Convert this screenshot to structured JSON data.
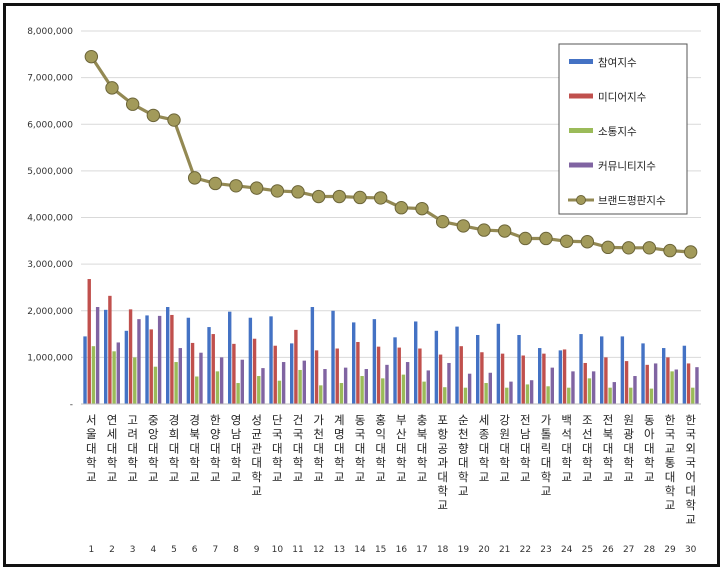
{
  "chart_data": {
    "type": "bar",
    "title": "",
    "xlabel": "",
    "ylabel": "",
    "ylim": [
      0,
      8000000
    ],
    "yticks": [
      0,
      1000000,
      2000000,
      3000000,
      4000000,
      5000000,
      6000000,
      7000000,
      8000000
    ],
    "ytick_labels": [
      "-",
      "1,000,000",
      "2,000,000",
      "3,000,000",
      "4,000,000",
      "5,000,000",
      "6,000,000",
      "7,000,000",
      "8,000,000"
    ],
    "grid": true,
    "legend_position": "top-right",
    "categories": [
      "서울대학교",
      "연세대학교",
      "고려대학교",
      "중앙대학교",
      "경희대학교",
      "경북대학교",
      "한양대학교",
      "영남대학교",
      "성균관대학교",
      "단국대학교",
      "건국대학교",
      "가천대학교",
      "계명대학교",
      "동국대학교",
      "홍익대학교",
      "부산대학교",
      "충북대학교",
      "포항공과대학교",
      "순천향대학교",
      "세종대학교",
      "강원대학교",
      "전남대학교",
      "가톨릭대학교",
      "백석대학교",
      "조선대학교",
      "전북대학교",
      "원광대학교",
      "동아대학교",
      "한국교통대학교",
      "한국외국어대학교"
    ],
    "ranks": [
      "1",
      "2",
      "3",
      "4",
      "5",
      "6",
      "7",
      "8",
      "9",
      "10",
      "11",
      "12",
      "13",
      "14",
      "15",
      "16",
      "17",
      "18",
      "19",
      "20",
      "21",
      "22",
      "23",
      "24",
      "25",
      "26",
      "27",
      "28",
      "29",
      "30"
    ],
    "series": [
      {
        "name": "참여지수",
        "kind": "bar",
        "color": "#4472c4",
        "values": [
          1450000,
          2020000,
          1570000,
          1900000,
          2080000,
          1850000,
          1650000,
          1980000,
          1850000,
          1880000,
          1300000,
          2080000,
          2000000,
          1750000,
          1820000,
          1430000,
          1770000,
          1570000,
          1660000,
          1480000,
          1720000,
          1480000,
          1200000,
          1150000,
          1500000,
          1450000,
          1450000,
          1300000,
          1200000,
          1250000
        ]
      },
      {
        "name": "미디어지수",
        "kind": "bar",
        "color": "#c0504d",
        "values": [
          2680000,
          2320000,
          2030000,
          1600000,
          1910000,
          1310000,
          1500000,
          1290000,
          1400000,
          1250000,
          1590000,
          1150000,
          1190000,
          1330000,
          1230000,
          1210000,
          1190000,
          1060000,
          1240000,
          1110000,
          1080000,
          1040000,
          1080000,
          1170000,
          880000,
          1000000,
          920000,
          840000,
          1000000,
          870000
        ]
      },
      {
        "name": "소통지수",
        "kind": "bar",
        "color": "#9bbb59",
        "values": [
          1240000,
          1130000,
          1000000,
          800000,
          900000,
          590000,
          700000,
          450000,
          600000,
          500000,
          730000,
          400000,
          450000,
          600000,
          550000,
          630000,
          480000,
          360000,
          350000,
          450000,
          350000,
          420000,
          380000,
          350000,
          550000,
          350000,
          350000,
          330000,
          700000,
          350000
        ]
      },
      {
        "name": "커뮤니티지수",
        "kind": "bar",
        "color": "#8064a2",
        "values": [
          2080000,
          1320000,
          1820000,
          1890000,
          1200000,
          1100000,
          1000000,
          950000,
          770000,
          900000,
          930000,
          750000,
          780000,
          750000,
          840000,
          900000,
          720000,
          880000,
          650000,
          670000,
          480000,
          510000,
          780000,
          700000,
          700000,
          470000,
          600000,
          870000,
          740000,
          790000
        ]
      },
      {
        "name": "브랜드평판지수",
        "kind": "line",
        "color": "#938953",
        "marker_color": "#a29a5a",
        "values": [
          7450000,
          6780000,
          6430000,
          6190000,
          6090000,
          4850000,
          4730000,
          4680000,
          4630000,
          4570000,
          4550000,
          4450000,
          4450000,
          4430000,
          4420000,
          4210000,
          4190000,
          3910000,
          3820000,
          3730000,
          3710000,
          3550000,
          3550000,
          3490000,
          3480000,
          3360000,
          3350000,
          3350000,
          3290000,
          3260000
        ]
      }
    ]
  }
}
